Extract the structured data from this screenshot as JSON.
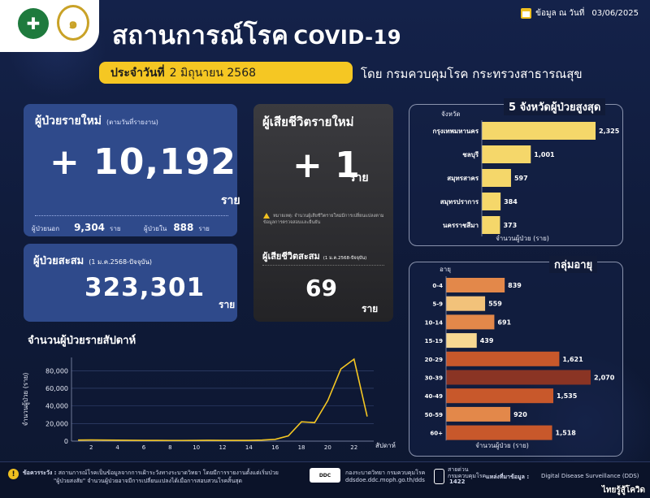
{
  "header": {
    "title": "สถานการณ์โรค",
    "title_suffix": "COVID-19",
    "data_date_label": "ข้อมูล ณ วันที่",
    "data_date": "03/06/2025",
    "banner_prefix": "ประจำวันที่",
    "banner_date": "2 มิถุนายน 2568",
    "department": "โดย กรมควบคุมโรค กระทรวงสาธารณสุข"
  },
  "new_cases": {
    "label": "ผู้ป่วยรายใหม่",
    "sub": "(ตามวันที่รายงาน)",
    "value": "+ 10,192",
    "unit": "ราย",
    "outpatient_label": "ผู้ป่วยนอก",
    "outpatient_value": "9,304",
    "inpatient_label": "ผู้ป่วยใน",
    "inpatient_value": "888",
    "unit_small": "ราย"
  },
  "cumulative_cases": {
    "label": "ผู้ป่วยสะสม",
    "sub": "(1 ม.ค.2568-ปัจจุบัน)",
    "value": "323,301",
    "unit": "ราย"
  },
  "deaths": {
    "label": "ผู้เสียชีวิตรายใหม่",
    "value": "+ 1",
    "unit": "ราย",
    "note": "หมายเหตุ: จำนวนผู้เสียชีวิตรายใหม่มีการเปลี่ยนแปลงตามข้อมูลการตรวจสอบและยืนยัน",
    "cum_label": "ผู้เสียชีวิตสะสม",
    "cum_sub": "(1 ม.ค.2568-ปัจจุบัน)",
    "cum_value": "69",
    "cum_unit": "ราย"
  },
  "weekly": {
    "title": "จำนวนผู้ป่วยรายสัปดาห์",
    "ylabel": "จำนวนผู้ป่วย (ราย)",
    "xlabel": "สัปดาห์"
  },
  "provinces": {
    "title": "5 จังหวัดผู้ป่วยสูงสุด",
    "col_label": "จังหวัด",
    "axis_label": "จำนวนผู้ป่วย (ราย)"
  },
  "ages": {
    "title": "กลุ่มอายุ",
    "col_label": "อายุ",
    "axis_label": "จำนวนผู้ป่วย (ราย)"
  },
  "footer": {
    "caution_label": "ข้อควรระวัง :",
    "caution_text1": "สถานการณ์โรคเป็นข้อมูลจากการเฝ้าระวังทางระบาดวิทยา โดยมีการรายงานตั้งแต่เริ่มป่วย",
    "caution_text2": "\"ผู้ป่วยสงสัย\" จำนวนผู้ป่วยอาจมีการเปลี่ยนแปลงได้เมื่อการสอบสวนโรคสิ้นสุด",
    "ddc_badge": "DDC",
    "ddc_name": "กองระบาดวิทยา กรมควบคุมโรค",
    "ddc_url": "ddsdoe.ddc.moph.go.th/dds",
    "hotline_label": "สายด่วน",
    "hotline_org": "กรมควบคุมโรค",
    "hotline_number": "1422",
    "source_label": "แหล่งที่มาข้อมูล :",
    "source_name": "Digital Disease Surveillance (DDS)",
    "brand": "ไทยรู้สู้โควิด"
  },
  "chart_data": [
    {
      "type": "line",
      "title": "จำนวนผู้ป่วยรายสัปดาห์",
      "xlabel": "สัปดาห์",
      "ylabel": "จำนวนผู้ป่วย (ราย)",
      "x": [
        1,
        2,
        3,
        4,
        5,
        6,
        7,
        8,
        9,
        10,
        11,
        12,
        13,
        14,
        15,
        16,
        17,
        18,
        19,
        20,
        21,
        22,
        23
      ],
      "values": [
        1200,
        1300,
        1200,
        1100,
        1000,
        900,
        900,
        800,
        800,
        900,
        1000,
        900,
        900,
        900,
        1200,
        2000,
        6000,
        22000,
        21000,
        46000,
        82000,
        93000,
        28000
      ],
      "xticks": [
        2,
        4,
        6,
        8,
        10,
        12,
        14,
        16,
        18,
        20,
        22
      ],
      "ylim": [
        0,
        95000
      ],
      "yticks": [
        "0",
        "20,000",
        "40,000",
        "60,000",
        "80,000"
      ],
      "color": "#f5c723",
      "grid": true
    },
    {
      "type": "bar",
      "orientation": "horizontal",
      "title": "5 จังหวัดผู้ป่วยสูงสุด",
      "xlabel": "จำนวนผู้ป่วย (ราย)",
      "ylabel": "จังหวัด",
      "categories": [
        "กรุงเทพมหานคร",
        "ชลบุรี",
        "สมุทรสาคร",
        "สมุทรปราการ",
        "นครราชสีมา"
      ],
      "values": [
        2325,
        1001,
        597,
        384,
        373
      ],
      "labels": [
        "2,325",
        "1,001",
        "597",
        "384",
        "373"
      ],
      "color": "#f5d76a"
    },
    {
      "type": "bar",
      "orientation": "horizontal",
      "title": "กลุ่มอายุ",
      "xlabel": "จำนวนผู้ป่วย (ราย)",
      "ylabel": "อายุ",
      "categories": [
        "0-4",
        "5-9",
        "10-14",
        "15-19",
        "20-29",
        "30-39",
        "40-49",
        "50-59",
        "60+"
      ],
      "values": [
        839,
        559,
        691,
        439,
        1621,
        2070,
        1535,
        920,
        1518
      ],
      "labels": [
        "839",
        "559",
        "691",
        "439",
        "1,621",
        "2,070",
        "1,535",
        "920",
        "1,518"
      ],
      "colors": [
        "#e3884a",
        "#f2c27a",
        "#e3884a",
        "#f7d892",
        "#c8582b",
        "#8a3424",
        "#c8582b",
        "#e3884a",
        "#c8582b"
      ]
    }
  ]
}
